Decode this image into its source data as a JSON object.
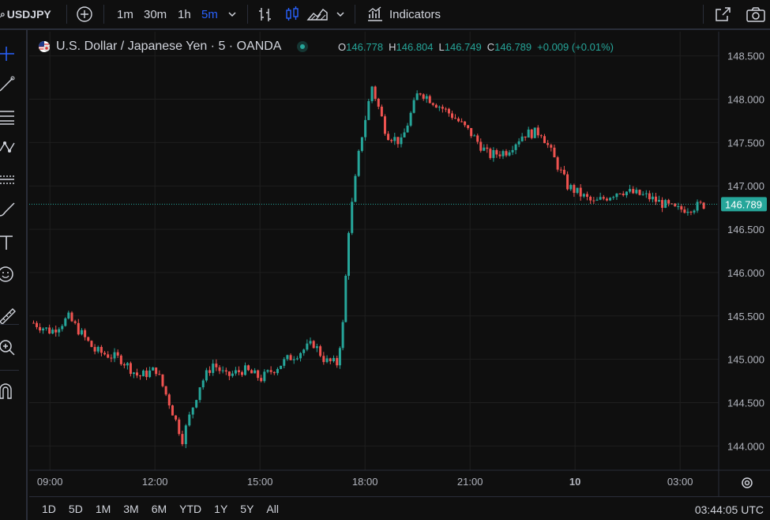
{
  "toolbar": {
    "symbol": "USDJPY",
    "timeframes": [
      "1m",
      "30m",
      "1h",
      "5m"
    ],
    "active_timeframe": "5m",
    "indicators_label": "Indicators"
  },
  "legend": {
    "title": "U.S. Dollar / Japanese Yen · 5 · OANDA",
    "open_key": "O",
    "open": "146.778",
    "high_key": "H",
    "high": "146.804",
    "low_key": "L",
    "low": "146.749",
    "close_key": "C",
    "close": "146.789",
    "change": "+0.009 (+0.01%)"
  },
  "colors": {
    "up": "#26a69a",
    "down": "#ef5350",
    "background": "#0f0f0f",
    "grid": "#1f1f1f",
    "accent": "#2962ff"
  },
  "ranges": [
    "1D",
    "5D",
    "1M",
    "3M",
    "6M",
    "YTD",
    "1Y",
    "5Y",
    "All"
  ],
  "clock": "03:44:05 UTC",
  "chart_data": {
    "type": "candlestick",
    "y_ticks": [
      "144.000",
      "144.500",
      "145.000",
      "145.500",
      "146.000",
      "146.500",
      "147.000",
      "147.500",
      "148.000",
      "148.500"
    ],
    "ylim": [
      143.72,
      148.78
    ],
    "x_ticks": [
      "09:00",
      "12:00",
      "15:00",
      "18:00",
      "21:00",
      "10",
      "03:00"
    ],
    "last_price_label": "146.789",
    "last_price": 146.789,
    "segments": [
      {
        "from": "08:30",
        "to": "09:30",
        "price": [
          145.42,
          145.32,
          145.48
        ]
      },
      {
        "from": "09:30",
        "to": "11:00",
        "price": [
          145.48,
          145.1,
          145.0
        ]
      },
      {
        "from": "11:00",
        "to": "12:00",
        "price": [
          145.0,
          144.8,
          144.88
        ]
      },
      {
        "from": "12:00",
        "to": "12:45",
        "price": [
          144.88,
          144.5,
          144.08
        ]
      },
      {
        "from": "12:45",
        "to": "13:15",
        "price": [
          144.08,
          144.4,
          144.7
        ]
      },
      {
        "from": "13:15",
        "to": "14:00",
        "price": [
          144.7,
          144.95,
          144.8
        ]
      },
      {
        "from": "14:00",
        "to": "15:00",
        "price": [
          144.8,
          144.88,
          144.78
        ]
      },
      {
        "from": "15:00",
        "to": "16:30",
        "price": [
          144.78,
          145.0,
          145.18
        ]
      },
      {
        "from": "16:30",
        "to": "17:10",
        "price": [
          145.18,
          144.98,
          144.95
        ]
      },
      {
        "from": "17:10",
        "to": "17:30",
        "price": [
          144.95,
          145.4,
          146.5
        ]
      },
      {
        "from": "17:30",
        "to": "18:10",
        "price": [
          146.5,
          147.5,
          148.15
        ]
      },
      {
        "from": "18:10",
        "to": "19:00",
        "price": [
          148.15,
          147.6,
          147.5
        ]
      },
      {
        "from": "19:00",
        "to": "20:00",
        "price": [
          147.5,
          148.1,
          147.95
        ]
      },
      {
        "from": "20:00",
        "to": "21:00",
        "price": [
          147.95,
          147.8,
          147.6
        ]
      },
      {
        "from": "21:00",
        "to": "22:00",
        "price": [
          147.6,
          147.35,
          147.4
        ]
      },
      {
        "from": "22:00",
        "to": "23:00",
        "price": [
          147.4,
          147.6,
          147.62
        ]
      },
      {
        "from": "23:00",
        "to": "00:30",
        "price": [
          147.62,
          147.0,
          146.8
        ]
      },
      {
        "from": "00:30",
        "to": "02:00",
        "price": [
          146.8,
          146.95,
          146.88
        ]
      },
      {
        "from": "02:00",
        "to": "03:44",
        "price": [
          146.88,
          146.72,
          146.79
        ]
      }
    ]
  }
}
